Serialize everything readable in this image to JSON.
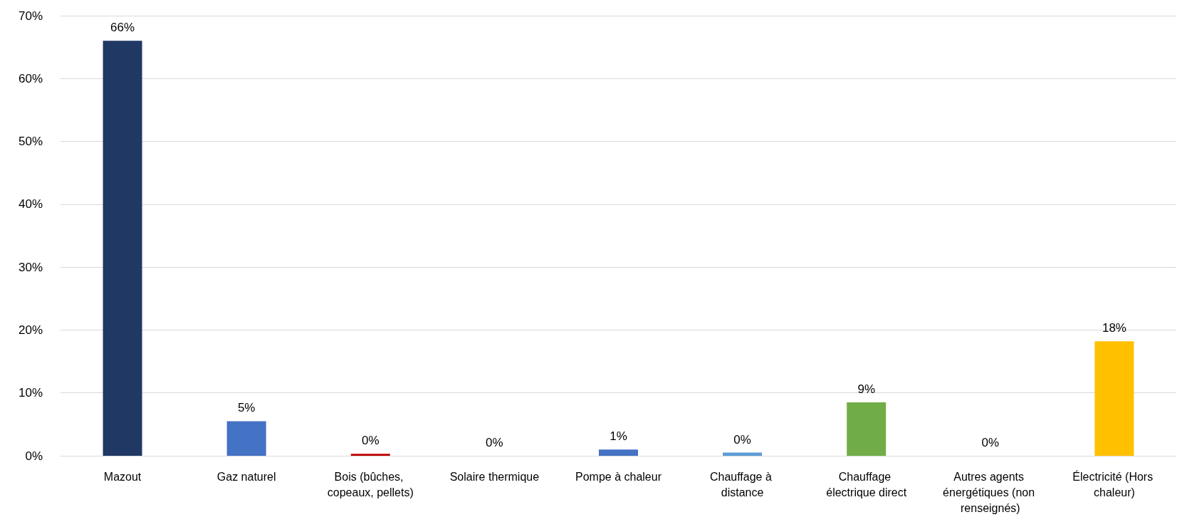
{
  "chart_data": {
    "type": "bar",
    "categories": [
      "Mazout",
      "Gaz naturel",
      "Bois (bûches, copeaux, pellets)",
      "Solaire thermique",
      "Pompe à chaleur",
      "Chauffage à distance",
      "Chauffage électrique direct",
      "Autres agents énergétiques (non renseignés)",
      "Électricité (Hors chaleur)"
    ],
    "values": [
      66,
      5.5,
      0.3,
      0,
      1,
      0.5,
      8.5,
      0,
      18.2
    ],
    "value_labels": [
      "66%",
      "5%",
      "0%",
      "0%",
      "1%",
      "0%",
      "9%",
      "0%",
      "18%"
    ],
    "colors": [
      "#203864",
      "#4472c4",
      "#c00000",
      "#4472c4",
      "#4472c4",
      "#5b9bd5",
      "#70ad47",
      "#4472c4",
      "#ffc000"
    ],
    "ylim": [
      0,
      70
    ],
    "yticks": [
      {
        "value": 0,
        "label": "0%"
      },
      {
        "value": 10,
        "label": "10%"
      },
      {
        "value": 20,
        "label": "20%"
      },
      {
        "value": 30,
        "label": "30%"
      },
      {
        "value": 40,
        "label": "40%"
      },
      {
        "value": 50,
        "label": "50%"
      },
      {
        "value": 60,
        "label": "60%"
      },
      {
        "value": 70,
        "label": "70%"
      }
    ],
    "grid": "y"
  }
}
